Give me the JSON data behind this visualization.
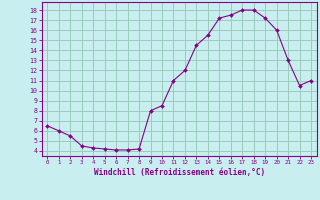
{
  "hours": [
    0,
    1,
    2,
    3,
    4,
    5,
    6,
    7,
    8,
    9,
    10,
    11,
    12,
    13,
    14,
    15,
    16,
    17,
    18,
    19,
    20,
    21,
    22,
    23
  ],
  "values": [
    6.5,
    6.0,
    5.5,
    4.5,
    4.3,
    4.2,
    4.1,
    4.1,
    4.2,
    8.0,
    8.5,
    11.0,
    12.0,
    14.5,
    15.5,
    17.2,
    17.5,
    18.0,
    18.0,
    17.2,
    16.0,
    13.0,
    10.5,
    11.0
  ],
  "line_color": "#880088",
  "marker": "D",
  "marker_size": 2,
  "bg_color": "#c8eef0",
  "grid_color": "#99ccbb",
  "xlabel": "Windchill (Refroidissement éolien,°C)",
  "ylabel_ticks": [
    4,
    5,
    6,
    7,
    8,
    9,
    10,
    11,
    12,
    13,
    14,
    15,
    16,
    17,
    18
  ],
  "ylim": [
    3.5,
    18.8
  ],
  "xlim": [
    -0.5,
    23.5
  ],
  "xticks": [
    0,
    1,
    2,
    3,
    4,
    5,
    6,
    7,
    8,
    9,
    10,
    11,
    12,
    13,
    14,
    15,
    16,
    17,
    18,
    19,
    20,
    21,
    22,
    23
  ],
  "tick_color": "#880088",
  "label_color": "#880088",
  "axis_color": "#880088"
}
